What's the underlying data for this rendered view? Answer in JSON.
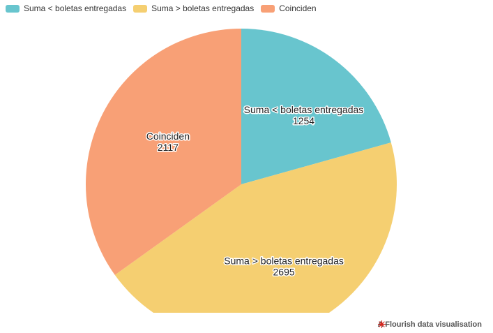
{
  "chart_data": {
    "type": "pie",
    "title": "",
    "series": [
      {
        "name": "Suma < boletas entregadas",
        "value": 1254,
        "color": "#68c5ce"
      },
      {
        "name": "Suma > boletas entregadas",
        "value": 2695,
        "color": "#f5cf71"
      },
      {
        "name": "Coinciden",
        "value": 2117,
        "color": "#f8a076"
      }
    ],
    "legend": "top-left"
  },
  "legend": {
    "items": [
      {
        "label": "Suma < boletas entregadas",
        "color": "#68c5ce"
      },
      {
        "label": "Suma > boletas entregadas",
        "color": "#f5cf71"
      },
      {
        "label": "Coinciden",
        "color": "#f8a076"
      }
    ]
  },
  "credit": {
    "text": "A Flourish data visualisation",
    "icon": "flourish-logo-icon",
    "icon_color": "#d7261e"
  }
}
